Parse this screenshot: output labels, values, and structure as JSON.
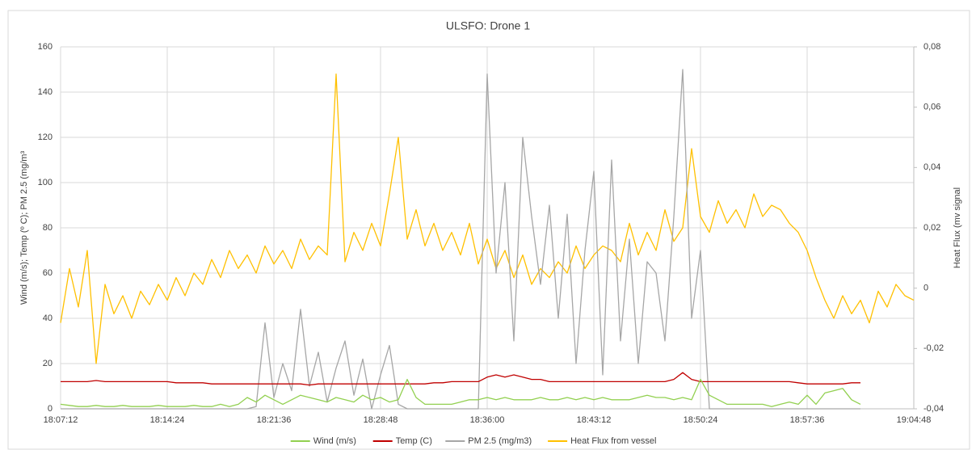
{
  "chart_data": {
    "type": "line",
    "title": "ULSFO: Drone 1",
    "y_label": "Wind (m/s); Temp (º C); PM 2.5 (mg/m³",
    "y2_label": "Heat Flux (mv signal",
    "grid": true,
    "legend": "bottom",
    "xlim": [
      65232,
      68688
    ],
    "xticks": [
      {
        "value": 65232,
        "label": "18:07:12"
      },
      {
        "value": 65664,
        "label": "18:14:24"
      },
      {
        "value": 66096,
        "label": "18:21:36"
      },
      {
        "value": 66528,
        "label": "18:28:48"
      },
      {
        "value": 66960,
        "label": "18:36:00"
      },
      {
        "value": 67392,
        "label": "18:43:12"
      },
      {
        "value": 67824,
        "label": "18:50:24"
      },
      {
        "value": 68256,
        "label": "18:57:36"
      },
      {
        "value": 68688,
        "label": "19:04:48"
      }
    ],
    "ylim": [
      0,
      160
    ],
    "yticks": [
      0,
      20,
      40,
      60,
      80,
      100,
      120,
      140,
      160
    ],
    "y2lim": [
      -0.04,
      0.08
    ],
    "y2ticks": [
      {
        "value": -0.04,
        "label": "-0,04"
      },
      {
        "value": -0.02,
        "label": "-0,02"
      },
      0,
      {
        "value": 0.02,
        "label": "0,02"
      },
      {
        "value": 0.04,
        "label": "0,04"
      },
      {
        "value": 0.06,
        "label": "0,06"
      },
      {
        "value": 0.08,
        "label": "0,08"
      }
    ],
    "x": [
      65232,
      65268,
      65304,
      65340,
      65376,
      65412,
      65448,
      65484,
      65520,
      65556,
      65592,
      65628,
      65664,
      65700,
      65736,
      65772,
      65808,
      65844,
      65880,
      65916,
      65952,
      65988,
      66024,
      66060,
      66096,
      66132,
      66168,
      66204,
      66240,
      66276,
      66312,
      66348,
      66384,
      66420,
      66456,
      66492,
      66528,
      66564,
      66600,
      66636,
      66672,
      66708,
      66744,
      66780,
      66816,
      66852,
      66888,
      66924,
      66960,
      66996,
      67032,
      67068,
      67104,
      67140,
      67176,
      67212,
      67248,
      67284,
      67320,
      67356,
      67392,
      67428,
      67464,
      67500,
      67536,
      67572,
      67608,
      67644,
      67680,
      67716,
      67752,
      67788,
      67824,
      67860,
      67896,
      67932,
      67968,
      68004,
      68040,
      68076,
      68112,
      68148,
      68184,
      68220,
      68256,
      68292,
      68328,
      68364,
      68400,
      68436,
      68472,
      68508,
      68544,
      68580,
      68616,
      68652,
      68688
    ],
    "series": [
      {
        "name": "Wind (m/s)",
        "color": "#92d050",
        "values": [
          2,
          1.5,
          1,
          1,
          1.5,
          1,
          1,
          1.5,
          1,
          1,
          1,
          1.5,
          1,
          1,
          1,
          1.5,
          1,
          1,
          2,
          1,
          2,
          5,
          3,
          6,
          4,
          2,
          4,
          6,
          5,
          4,
          3,
          5,
          4,
          3,
          6,
          4,
          5,
          3,
          4,
          13,
          5,
          2,
          2,
          2,
          2,
          3,
          4,
          4,
          5,
          4,
          5,
          4,
          4,
          4,
          5,
          4,
          4,
          5,
          4,
          5,
          4,
          5,
          4,
          4,
          4,
          5,
          6,
          5,
          5,
          4,
          5,
          4,
          13,
          6,
          4,
          2,
          2,
          2,
          2,
          2,
          1,
          2,
          3,
          2,
          6,
          2,
          7,
          8,
          9,
          4,
          2,
          null,
          null,
          null,
          null,
          null,
          null
        ]
      },
      {
        "name": "Temp (C)",
        "color": "#c00000",
        "values": [
          12,
          12,
          12,
          12,
          12.5,
          12,
          12,
          12,
          12,
          12,
          12,
          12,
          12,
          11.5,
          11.5,
          11.5,
          11.5,
          11,
          11,
          11,
          11,
          11,
          11,
          11,
          11,
          11,
          11,
          11,
          10.5,
          11,
          11,
          11,
          11,
          11,
          11,
          11,
          11,
          11,
          11,
          11,
          11,
          11,
          11.5,
          11.5,
          12,
          12,
          12,
          12,
          14,
          15,
          14,
          15,
          14,
          13,
          13,
          12,
          12,
          12,
          12,
          12,
          12,
          12,
          12,
          12,
          12,
          12,
          12,
          12,
          12,
          13,
          16,
          13,
          12,
          12,
          12,
          12,
          12,
          12,
          12,
          12,
          12,
          12,
          12,
          11.5,
          11,
          11,
          11,
          11,
          11,
          11.5,
          11.5,
          null,
          null,
          null,
          null,
          null,
          null
        ]
      },
      {
        "name": "PM 2.5 (mg/m3)",
        "color": "#a6a6a6",
        "values": [
          0,
          0,
          0,
          0,
          0,
          0,
          0,
          0,
          0,
          0,
          0,
          0,
          0,
          0,
          0,
          0,
          0,
          0,
          0,
          0,
          0,
          0,
          1,
          38,
          5,
          20,
          8,
          44,
          10,
          25,
          3,
          18,
          30,
          6,
          22,
          0,
          15,
          28,
          2,
          0,
          0,
          0,
          0,
          0,
          0,
          0,
          0,
          0,
          148,
          60,
          100,
          30,
          120,
          85,
          55,
          90,
          40,
          86,
          20,
          70,
          105,
          15,
          110,
          30,
          75,
          20,
          65,
          60,
          30,
          85,
          150,
          40,
          70,
          0,
          0,
          0,
          0,
          0,
          0,
          0,
          0,
          0,
          0,
          0,
          0,
          0,
          0,
          0,
          0,
          0,
          0,
          null,
          null,
          null,
          null,
          null,
          null
        ]
      },
      {
        "name": "Heat Flux from vessel",
        "color": "#ffc000",
        "axis": "y2",
        "values": [
          -0.0115,
          0.0065,
          -0.00625,
          0.0125,
          -0.025,
          0.00125,
          -0.0085,
          -0.0025,
          -0.01,
          -0.001,
          -0.0055,
          0.00125,
          -0.004,
          0.0035,
          -0.0025,
          0.005,
          0.00125,
          0.0095,
          0.0035,
          0.0125,
          0.0065,
          0.011,
          0.005,
          0.014,
          0.008,
          0.0125,
          0.0065,
          0.01625,
          0.0095,
          0.014,
          0.011,
          0.071,
          0.00875,
          0.0185,
          0.0125,
          0.0215,
          0.014,
          0.03125,
          0.05,
          0.01625,
          0.026,
          0.014,
          0.0215,
          0.0125,
          0.0185,
          0.011,
          0.0215,
          0.008,
          0.01625,
          0.0065,
          0.0125,
          0.0035,
          0.011,
          0.00125,
          0.0065,
          0.0035,
          0.00875,
          0.005,
          0.014,
          0.0065,
          0.011,
          0.014,
          0.0125,
          0.00875,
          0.0215,
          0.011,
          0.0185,
          0.0125,
          0.026,
          0.0155,
          0.02,
          0.04625,
          0.02375,
          0.0185,
          0.029,
          0.0215,
          0.026,
          0.02,
          0.03125,
          0.02375,
          0.0275,
          0.026,
          0.0215,
          0.0185,
          0.0125,
          0.0035,
          -0.004,
          -0.01,
          -0.0025,
          -0.0085,
          -0.004,
          -0.0115,
          -0.001,
          -0.00625,
          0.00125,
          -0.0025,
          -0.004
        ]
      }
    ]
  }
}
